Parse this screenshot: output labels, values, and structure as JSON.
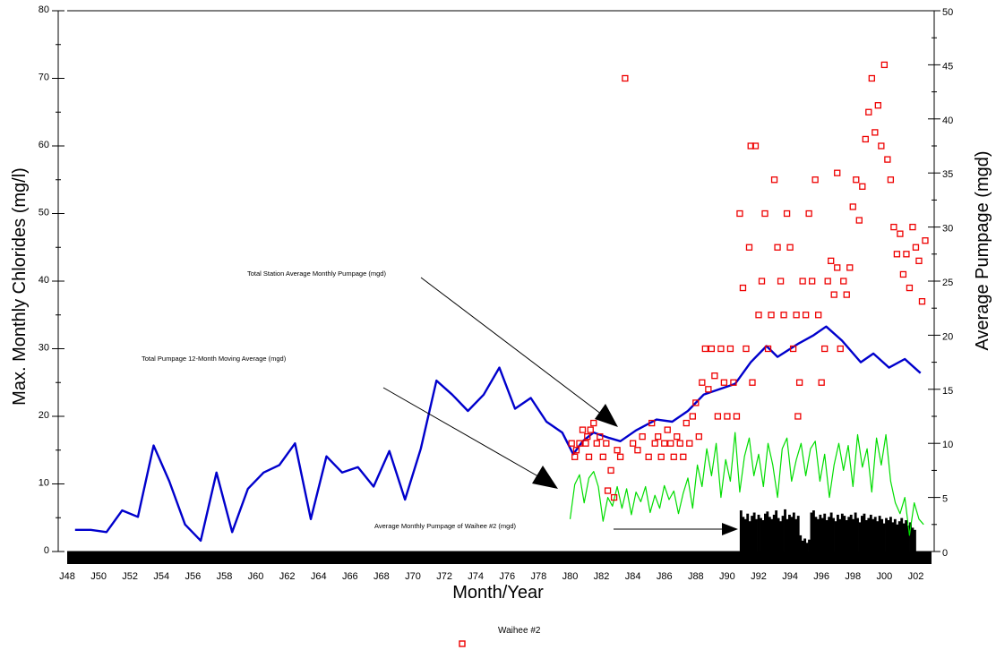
{
  "chart_data": {
    "type": "line",
    "xlabel": "Month/Year",
    "ylabel_left": "Max. Monthly Chlorides (mg/l)",
    "ylabel_right": "Average Pumpage (mgd)",
    "xlim": [
      1948,
      2003
    ],
    "ylim_left": [
      0,
      80
    ],
    "ylim_right": [
      0,
      50
    ],
    "left_ticks": [
      0,
      10,
      20,
      30,
      40,
      50,
      60,
      70,
      80
    ],
    "right_ticks": [
      0,
      5,
      10,
      15,
      20,
      25,
      30,
      35,
      40,
      45,
      50
    ],
    "x_ticks": [
      {
        "x": 1948,
        "label": "J48"
      },
      {
        "x": 1950,
        "label": "J50"
      },
      {
        "x": 1952,
        "label": "J52"
      },
      {
        "x": 1954,
        "label": "J54"
      },
      {
        "x": 1956,
        "label": "J56"
      },
      {
        "x": 1958,
        "label": "J58"
      },
      {
        "x": 1960,
        "label": "J60"
      },
      {
        "x": 1962,
        "label": "J62"
      },
      {
        "x": 1964,
        "label": "J64"
      },
      {
        "x": 1966,
        "label": "J66"
      },
      {
        "x": 1968,
        "label": "J68"
      },
      {
        "x": 1970,
        "label": "J70"
      },
      {
        "x": 1972,
        "label": "J72"
      },
      {
        "x": 1974,
        "label": "J74"
      },
      {
        "x": 1976,
        "label": "J76"
      },
      {
        "x": 1978,
        "label": "J78"
      },
      {
        "x": 1980,
        "label": "J80"
      },
      {
        "x": 1982,
        "label": "J82"
      },
      {
        "x": 1984,
        "label": "J84"
      },
      {
        "x": 1986,
        "label": "J86"
      },
      {
        "x": 1988,
        "label": "J88"
      },
      {
        "x": 1990,
        "label": "J90"
      },
      {
        "x": 1992,
        "label": "J92"
      },
      {
        "x": 1994,
        "label": "J94"
      },
      {
        "x": 1996,
        "label": "J96"
      },
      {
        "x": 1998,
        "label": "J98"
      },
      {
        "x": 2000,
        "label": "J00"
      },
      {
        "x": 2002,
        "label": "J02"
      }
    ],
    "series": [
      {
        "kind": "line",
        "axis": "right",
        "color": "#0000cc",
        "points": [
          [
            1948.5,
            2.0
          ],
          [
            1949.5,
            2.0
          ],
          [
            1950.5,
            1.8
          ],
          [
            1951.5,
            3.8
          ],
          [
            1952.5,
            3.2
          ],
          [
            1953.5,
            9.8
          ],
          [
            1954.5,
            6.5
          ],
          [
            1955.5,
            2.5
          ],
          [
            1956.5,
            1.0
          ],
          [
            1957.5,
            7.3
          ],
          [
            1958.5,
            1.8
          ],
          [
            1959.5,
            5.8
          ],
          [
            1960.5,
            7.3
          ],
          [
            1961.5,
            8.0
          ],
          [
            1962.5,
            10.0
          ],
          [
            1963.5,
            3.0
          ],
          [
            1964.5,
            8.8
          ],
          [
            1965.5,
            7.3
          ],
          [
            1966.5,
            7.8
          ],
          [
            1967.5,
            6.0
          ],
          [
            1968.5,
            9.3
          ],
          [
            1969.5,
            4.8
          ],
          [
            1970.5,
            9.5
          ],
          [
            1971.5,
            15.8
          ],
          [
            1972.5,
            14.5
          ],
          [
            1973.5,
            13.0
          ],
          [
            1974.5,
            14.5
          ],
          [
            1975.5,
            17.0
          ],
          [
            1976.5,
            13.2
          ],
          [
            1977.5,
            14.2
          ],
          [
            1978.5,
            12.0
          ],
          [
            1979.5,
            11.0
          ],
          [
            1980.2,
            9.0
          ],
          [
            1980.8,
            10.2
          ],
          [
            1981.5,
            11.0
          ],
          [
            1982.5,
            10.5
          ],
          [
            1983.2,
            10.2
          ],
          [
            1984.2,
            11.2
          ],
          [
            1985.5,
            12.2
          ],
          [
            1986.5,
            12.0
          ],
          [
            1987.5,
            13.0
          ],
          [
            1988.5,
            14.5
          ],
          [
            1989.5,
            15.0
          ],
          [
            1990.5,
            15.5
          ],
          [
            1991.5,
            17.5
          ],
          [
            1992.5,
            19.0
          ],
          [
            1993.2,
            18.0
          ],
          [
            1994.5,
            19.2
          ],
          [
            1995.5,
            20.0
          ],
          [
            1996.3,
            20.8
          ],
          [
            1997.3,
            19.5
          ],
          [
            1998.5,
            17.5
          ],
          [
            1999.3,
            18.3
          ],
          [
            2000.3,
            17.0
          ],
          [
            2001.3,
            17.8
          ],
          [
            2002.3,
            16.5
          ]
        ]
      },
      {
        "kind": "line",
        "axis": "right",
        "color": "#00dd00",
        "points": [
          [
            1980.0,
            3.0
          ],
          [
            1980.3,
            6.2
          ],
          [
            1980.6,
            7.1
          ],
          [
            1980.9,
            4.5
          ],
          [
            1981.2,
            6.8
          ],
          [
            1981.5,
            7.4
          ],
          [
            1981.8,
            6.0
          ],
          [
            1982.1,
            2.8
          ],
          [
            1982.4,
            5.0
          ],
          [
            1982.7,
            4.2
          ],
          [
            1983.0,
            6.0
          ],
          [
            1983.3,
            4.0
          ],
          [
            1983.6,
            5.8
          ],
          [
            1983.9,
            3.4
          ],
          [
            1984.2,
            5.5
          ],
          [
            1984.5,
            4.6
          ],
          [
            1984.8,
            6.0
          ],
          [
            1985.1,
            3.6
          ],
          [
            1985.4,
            5.2
          ],
          [
            1985.7,
            4.0
          ],
          [
            1986.0,
            6.1
          ],
          [
            1986.3,
            4.8
          ],
          [
            1986.6,
            5.6
          ],
          [
            1986.9,
            3.5
          ],
          [
            1987.2,
            5.4
          ],
          [
            1987.5,
            6.8
          ],
          [
            1987.8,
            4.0
          ],
          [
            1988.1,
            8.0
          ],
          [
            1988.4,
            6.0
          ],
          [
            1988.7,
            9.5
          ],
          [
            1989.0,
            7.0
          ],
          [
            1989.3,
            10.0
          ],
          [
            1989.6,
            5.0
          ],
          [
            1989.9,
            8.5
          ],
          [
            1990.2,
            6.5
          ],
          [
            1990.5,
            11.0
          ],
          [
            1990.8,
            5.5
          ],
          [
            1991.1,
            8.8
          ],
          [
            1991.4,
            10.5
          ],
          [
            1991.7,
            7.0
          ],
          [
            1992.0,
            9.0
          ],
          [
            1992.3,
            6.0
          ],
          [
            1992.6,
            10.0
          ],
          [
            1992.9,
            8.0
          ],
          [
            1993.2,
            5.0
          ],
          [
            1993.5,
            9.5
          ],
          [
            1993.8,
            10.5
          ],
          [
            1994.1,
            6.5
          ],
          [
            1994.4,
            8.5
          ],
          [
            1994.7,
            10.0
          ],
          [
            1995.0,
            7.0
          ],
          [
            1995.3,
            9.5
          ],
          [
            1995.6,
            10.2
          ],
          [
            1995.9,
            6.5
          ],
          [
            1996.2,
            9.0
          ],
          [
            1996.5,
            5.0
          ],
          [
            1996.8,
            8.0
          ],
          [
            1997.1,
            10.0
          ],
          [
            1997.4,
            7.5
          ],
          [
            1997.7,
            9.8
          ],
          [
            1998.0,
            6.0
          ],
          [
            1998.3,
            10.8
          ],
          [
            1998.6,
            7.8
          ],
          [
            1998.9,
            9.5
          ],
          [
            1999.2,
            5.5
          ],
          [
            1999.5,
            10.5
          ],
          [
            1999.8,
            8.0
          ],
          [
            2000.1,
            10.8
          ],
          [
            2000.4,
            6.5
          ],
          [
            2000.7,
            4.5
          ],
          [
            2001.0,
            3.5
          ],
          [
            2001.3,
            5.0
          ],
          [
            2001.6,
            1.5
          ],
          [
            2001.9,
            4.5
          ],
          [
            2002.2,
            3.0
          ],
          [
            2002.5,
            2.5
          ]
        ]
      },
      {
        "kind": "scatter",
        "axis": "left",
        "color": "#ee0000",
        "name": "Waihee #2",
        "points": [
          [
            1980.1,
            16
          ],
          [
            1980.3,
            14
          ],
          [
            1980.4,
            15
          ],
          [
            1980.6,
            16
          ],
          [
            1980.8,
            18
          ],
          [
            1981.0,
            16
          ],
          [
            1981.1,
            17
          ],
          [
            1981.3,
            18
          ],
          [
            1981.5,
            19
          ],
          [
            1981.7,
            16
          ],
          [
            1981.9,
            17
          ],
          [
            1982.1,
            14
          ],
          [
            1982.3,
            16
          ],
          [
            1982.4,
            9
          ],
          [
            1982.6,
            12
          ],
          [
            1982.8,
            8
          ],
          [
            1983.0,
            15
          ],
          [
            1983.2,
            14
          ],
          [
            1984.0,
            16
          ],
          [
            1984.3,
            15
          ],
          [
            1984.6,
            17
          ],
          [
            1985.0,
            14
          ],
          [
            1985.2,
            19
          ],
          [
            1985.4,
            16
          ],
          [
            1985.6,
            17
          ],
          [
            1985.8,
            14
          ],
          [
            1986.0,
            16
          ],
          [
            1986.2,
            18
          ],
          [
            1986.4,
            16
          ],
          [
            1986.6,
            14
          ],
          [
            1986.8,
            17
          ],
          [
            1987.0,
            16
          ],
          [
            1987.2,
            14
          ],
          [
            1987.4,
            19
          ],
          [
            1987.6,
            16
          ],
          [
            1987.8,
            20
          ],
          [
            1988.0,
            22
          ],
          [
            1988.2,
            17
          ],
          [
            1988.4,
            25
          ],
          [
            1988.6,
            30
          ],
          [
            1988.8,
            24
          ],
          [
            1989.0,
            30
          ],
          [
            1989.2,
            26
          ],
          [
            1989.4,
            20
          ],
          [
            1989.6,
            30
          ],
          [
            1989.8,
            25
          ],
          [
            1990.0,
            20
          ],
          [
            1990.2,
            30
          ],
          [
            1990.4,
            25
          ],
          [
            1990.6,
            20
          ],
          [
            1990.8,
            50
          ],
          [
            1991.0,
            39
          ],
          [
            1991.2,
            30
          ],
          [
            1991.4,
            45
          ],
          [
            1991.6,
            25
          ],
          [
            1991.8,
            60
          ],
          [
            1992.0,
            35
          ],
          [
            1992.2,
            40
          ],
          [
            1992.4,
            50
          ],
          [
            1992.6,
            30
          ],
          [
            1992.8,
            35
          ],
          [
            1993.0,
            55
          ],
          [
            1993.2,
            45
          ],
          [
            1993.4,
            40
          ],
          [
            1993.6,
            35
          ],
          [
            1993.8,
            50
          ],
          [
            1994.0,
            45
          ],
          [
            1994.2,
            30
          ],
          [
            1994.4,
            35
          ],
          [
            1994.6,
            25
          ],
          [
            1994.8,
            40
          ],
          [
            1995.0,
            35
          ],
          [
            1995.2,
            50
          ],
          [
            1995.4,
            40
          ],
          [
            1995.6,
            55
          ],
          [
            1995.8,
            35
          ],
          [
            1996.0,
            25
          ],
          [
            1996.2,
            30
          ],
          [
            1996.4,
            40
          ],
          [
            1996.6,
            43
          ],
          [
            1996.8,
            38
          ],
          [
            1997.0,
            42
          ],
          [
            1997.2,
            30
          ],
          [
            1997.4,
            40
          ],
          [
            1997.6,
            38
          ],
          [
            1997.8,
            42
          ],
          [
            1998.0,
            51
          ],
          [
            1998.2,
            55
          ],
          [
            1998.4,
            49
          ],
          [
            1998.6,
            54
          ],
          [
            1998.8,
            61
          ],
          [
            1999.0,
            65
          ],
          [
            1999.2,
            70
          ],
          [
            1999.4,
            62
          ],
          [
            1999.6,
            66
          ],
          [
            1999.8,
            60
          ],
          [
            2000.0,
            72
          ],
          [
            2000.2,
            58
          ],
          [
            2000.4,
            55
          ],
          [
            2000.6,
            48
          ],
          [
            2000.8,
            44
          ],
          [
            2001.0,
            47
          ],
          [
            2001.2,
            41
          ],
          [
            2001.4,
            44
          ],
          [
            2001.6,
            39
          ],
          [
            2001.8,
            48
          ],
          [
            2002.0,
            45
          ],
          [
            2002.2,
            43
          ],
          [
            2002.4,
            37
          ],
          [
            2002.6,
            46
          ],
          [
            1981.2,
            14
          ],
          [
            1983.5,
            70
          ],
          [
            1991.5,
            60
          ],
          [
            1994.5,
            20
          ],
          [
            1997.0,
            56
          ]
        ]
      },
      {
        "kind": "bars",
        "axis": "right",
        "color": "#000000",
        "x_range": [
          1990.8,
          2002.0
        ],
        "values": [
          3.8,
          3.2,
          3.0,
          3.5,
          2.8,
          3.3,
          3.6,
          3.0,
          3.4,
          3.1,
          2.9,
          3.5,
          3.7,
          3.2,
          3.0,
          3.4,
          3.8,
          3.1,
          2.8,
          3.3,
          3.9,
          3.0,
          3.4,
          3.2,
          3.6,
          3.0,
          3.3,
          1.5,
          1.0,
          1.2,
          0.8,
          1.1,
          3.6,
          3.8,
          3.2,
          3.0,
          3.4,
          3.1,
          3.5,
          2.9,
          3.2,
          3.6,
          3.1,
          2.8,
          3.4,
          3.0,
          3.5,
          3.3,
          2.9,
          3.2,
          3.4,
          3.0,
          3.6,
          3.1,
          2.7,
          3.3,
          3.5,
          2.9,
          3.1,
          3.4,
          3.0,
          3.2,
          2.8,
          3.3,
          3.0,
          2.6,
          3.1,
          2.9,
          3.2,
          2.7,
          3.0,
          2.5,
          2.8,
          3.1,
          2.6,
          2.9,
          2.4,
          2.7,
          2.2,
          2.0
        ]
      }
    ],
    "annotations": [
      {
        "text": "Total  Station Average Monthly Pumpage (mgd)"
      },
      {
        "text": "Total Pumpage  12-Month Moving Average (mgd)"
      },
      {
        "text": "Average Monthly Pumpage of Waihee #2 (mgd)"
      }
    ],
    "legend": [
      {
        "label": "Waihee #2",
        "marker": "square",
        "color": "#ee0000"
      }
    ]
  }
}
